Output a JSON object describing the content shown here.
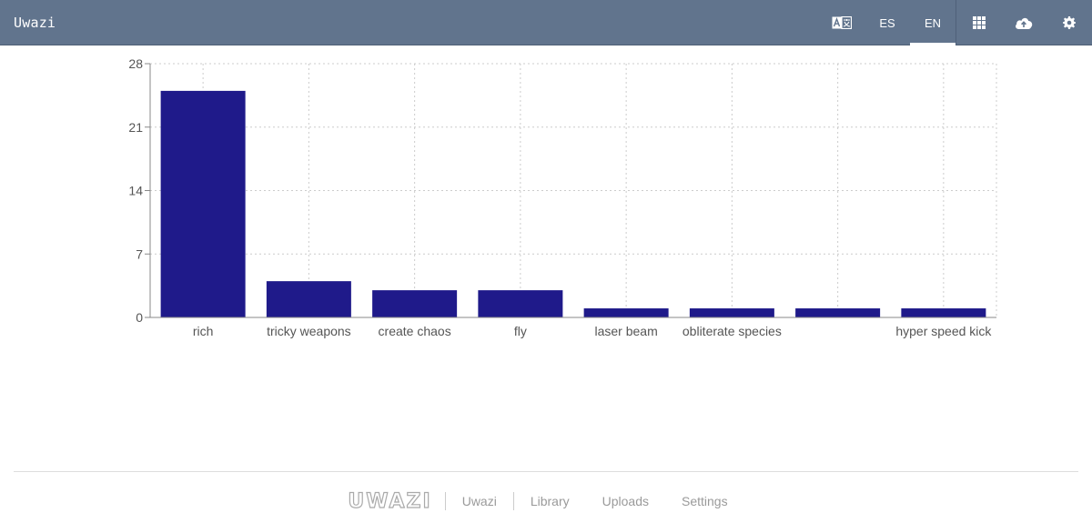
{
  "header": {
    "brand": "Uwazi",
    "lang_es": "ES",
    "lang_en": "EN",
    "icons": [
      "translate-icon",
      "grid-icon",
      "cloud-upload-icon",
      "gear-icon"
    ]
  },
  "chart_data": {
    "type": "bar",
    "categories": [
      "rich",
      "tricky weapons",
      "create chaos",
      "fly",
      "laser beam",
      "obliterate species",
      "",
      "hyper speed kick"
    ],
    "values": [
      25,
      4,
      3,
      3,
      1,
      1,
      1,
      1
    ],
    "ylim": [
      0,
      28
    ],
    "yticks": [
      "0",
      "7",
      "14",
      "21",
      "28"
    ],
    "grid": true,
    "bar_color": "#1f1a8a"
  },
  "footer": {
    "logo": "UWAZI",
    "links": [
      "Uwazi",
      "Library",
      "Uploads",
      "Settings"
    ]
  }
}
